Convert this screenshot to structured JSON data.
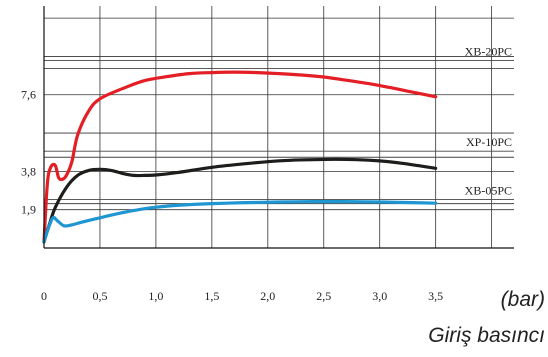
{
  "chart_data": {
    "type": "line",
    "title": "",
    "xlabel": "Giriş basıncı",
    "xunit": "(bar)",
    "ylabel": "",
    "xlim": [
      0,
      4.2
    ],
    "ylim": [
      0,
      12
    ],
    "grid": true,
    "x_ticks": [
      {
        "value": 0,
        "label": "0"
      },
      {
        "value": 0.5,
        "label": "0,5"
      },
      {
        "value": 1.0,
        "label": "1,0"
      },
      {
        "value": 1.5,
        "label": "1,5"
      },
      {
        "value": 2.0,
        "label": "2,0"
      },
      {
        "value": 2.5,
        "label": "2,5"
      },
      {
        "value": 3.0,
        "label": "3,0"
      },
      {
        "value": 3.5,
        "label": "3,5"
      }
    ],
    "y_ticks": [
      {
        "value": 1.9,
        "label": "1,9"
      },
      {
        "value": 3.8,
        "label": "3,8"
      },
      {
        "value": 7.6,
        "label": "7,6"
      }
    ],
    "reference_lines": [
      {
        "name": "XB-20PC",
        "y": 9.3,
        "y2": 8.9
      },
      {
        "name": "XP-10PC",
        "y": 4.8,
        "y2": 4.5
      },
      {
        "name": "XB-05PC",
        "y": 2.4,
        "y2": 2.2
      }
    ],
    "series": [
      {
        "color": "#e31e24",
        "x": [
          0,
          0.03,
          0.06,
          0.1,
          0.13,
          0.16,
          0.2,
          0.25,
          0.3,
          0.4,
          0.5,
          0.7,
          0.9,
          1.1,
          1.3,
          1.5,
          1.7,
          1.9,
          2.1,
          2.3,
          2.5,
          2.7,
          2.9,
          3.1,
          3.3,
          3.5
        ],
        "y": [
          0.3,
          3.2,
          4.0,
          4.1,
          3.5,
          3.4,
          3.6,
          4.3,
          5.6,
          6.8,
          7.4,
          7.9,
          8.3,
          8.5,
          8.65,
          8.7,
          8.72,
          8.7,
          8.65,
          8.58,
          8.48,
          8.32,
          8.15,
          7.95,
          7.72,
          7.5
        ]
      },
      {
        "color": "#1d1d1b",
        "x": [
          0,
          0.05,
          0.1,
          0.2,
          0.3,
          0.4,
          0.5,
          0.6,
          0.7,
          0.8,
          0.9,
          1.0,
          1.2,
          1.5,
          1.8,
          2.0,
          2.2,
          2.4,
          2.6,
          2.8,
          3.0,
          3.2,
          3.35,
          3.5
        ],
        "y": [
          0.3,
          1.2,
          2.0,
          3.0,
          3.6,
          3.85,
          3.9,
          3.85,
          3.7,
          3.6,
          3.6,
          3.62,
          3.75,
          4.0,
          4.18,
          4.28,
          4.35,
          4.38,
          4.4,
          4.38,
          4.32,
          4.2,
          4.08,
          3.95
        ]
      },
      {
        "color": "#1e96d2",
        "x": [
          0,
          0.04,
          0.08,
          0.12,
          0.18,
          0.25,
          0.35,
          0.5,
          0.7,
          0.9,
          1.1,
          1.3,
          1.5,
          1.8,
          2.1,
          2.4,
          2.7,
          3.0,
          3.3,
          3.5
        ],
        "y": [
          0.3,
          1.0,
          1.5,
          1.35,
          1.1,
          1.15,
          1.3,
          1.5,
          1.75,
          1.95,
          2.08,
          2.15,
          2.2,
          2.25,
          2.28,
          2.3,
          2.3,
          2.28,
          2.25,
          2.22
        ]
      }
    ]
  }
}
